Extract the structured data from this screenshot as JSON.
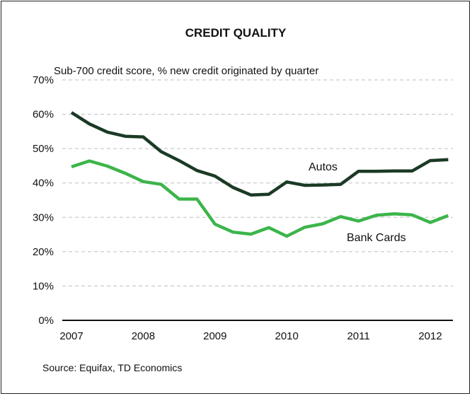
{
  "chart_data": {
    "type": "line",
    "title": "CREDIT QUALITY",
    "subtitle": "Sub-700 credit score, % new credit originated by quarter",
    "source": "Source: Equifax, TD Economics",
    "ylim": [
      0,
      70
    ],
    "y_ticks": [
      "0%",
      "10%",
      "20%",
      "30%",
      "40%",
      "50%",
      "60%",
      "70%"
    ],
    "y_tick_values": [
      0,
      10,
      20,
      30,
      40,
      50,
      60,
      70
    ],
    "x_ticks": [
      "2007",
      "2008",
      "2009",
      "2010",
      "2011",
      "2012"
    ],
    "x_tick_values": [
      2007,
      2008,
      2009,
      2010,
      2011,
      2012
    ],
    "grid": true,
    "series": [
      {
        "name": "Autos",
        "color": "#1b3a26",
        "x": [
          2007.0,
          2007.25,
          2007.5,
          2007.75,
          2008.0,
          2008.25,
          2008.5,
          2008.75,
          2009.0,
          2009.25,
          2009.5,
          2009.75,
          2010.0,
          2010.25,
          2010.5,
          2010.75,
          2011.0,
          2011.25,
          2011.5,
          2011.75,
          2012.0,
          2012.25
        ],
        "values": [
          60.5,
          57.2,
          54.8,
          53.6,
          53.4,
          49.1,
          46.5,
          43.6,
          42.0,
          38.7,
          36.5,
          36.7,
          40.3,
          39.3,
          39.4,
          39.6,
          43.4,
          43.4,
          43.5,
          43.5,
          46.5,
          46.8
        ]
      },
      {
        "name": "Bank Cards",
        "color": "#3cb54a",
        "x": [
          2007.0,
          2007.25,
          2007.5,
          2007.75,
          2008.0,
          2008.25,
          2008.5,
          2008.75,
          2009.0,
          2009.25,
          2009.5,
          2009.75,
          2010.0,
          2010.25,
          2010.5,
          2010.75,
          2011.0,
          2011.25,
          2011.5,
          2011.75,
          2012.0,
          2012.25
        ],
        "values": [
          44.7,
          46.4,
          44.9,
          42.8,
          40.4,
          39.6,
          35.3,
          35.3,
          28.0,
          25.7,
          25.1,
          27.0,
          24.5,
          27.1,
          28.1,
          30.2,
          28.9,
          30.6,
          31.0,
          30.7,
          28.5,
          30.5
        ]
      }
    ]
  }
}
